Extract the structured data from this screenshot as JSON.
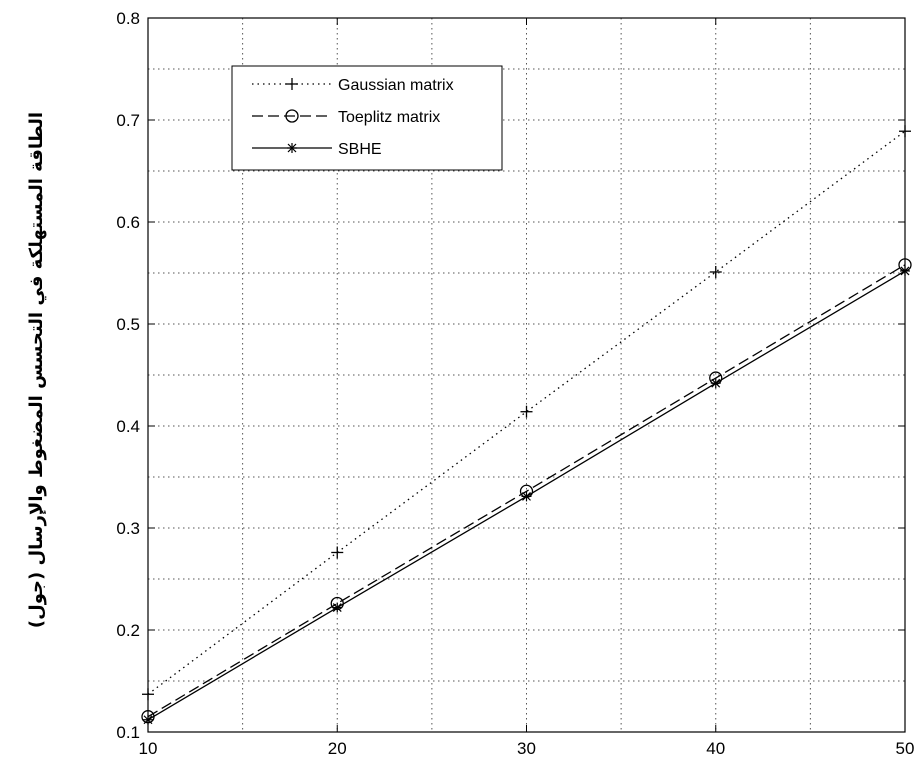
{
  "chart_data": {
    "type": "line",
    "title": "",
    "xlabel": "",
    "ylabel": "الطاقة المستهلكة في التحسس المضغوط والإرسال (جول)",
    "xlim": [
      10,
      50
    ],
    "ylim": [
      0.1,
      0.8
    ],
    "xticks": [
      10,
      20,
      30,
      40,
      50
    ],
    "xtick_labels": [
      "10",
      "20",
      "30",
      "40",
      "50"
    ],
    "yticks": [
      0.1,
      0.2,
      0.3,
      0.4,
      0.5,
      0.6,
      0.7,
      0.8
    ],
    "ytick_labels": [
      "0.1",
      "0.2",
      "0.3",
      "0.4",
      "0.5",
      "0.6",
      "0.7",
      "0.8"
    ],
    "grid": true,
    "legend_position": "top-left",
    "x": [
      10,
      20,
      30,
      40,
      50
    ],
    "series": [
      {
        "name": "Gaussian matrix",
        "values": [
          0.137,
          0.276,
          0.414,
          0.551,
          0.689
        ],
        "line": "dotted",
        "marker": "plus",
        "color": "#000000"
      },
      {
        "name": "Toeplitz matrix",
        "values": [
          0.115,
          0.226,
          0.336,
          0.447,
          0.558
        ],
        "line": "dashed",
        "marker": "circle",
        "color": "#000000"
      },
      {
        "name": "SBHE",
        "values": [
          0.112,
          0.222,
          0.331,
          0.442,
          0.552
        ],
        "line": "solid",
        "marker": "star",
        "color": "#000000"
      }
    ]
  }
}
